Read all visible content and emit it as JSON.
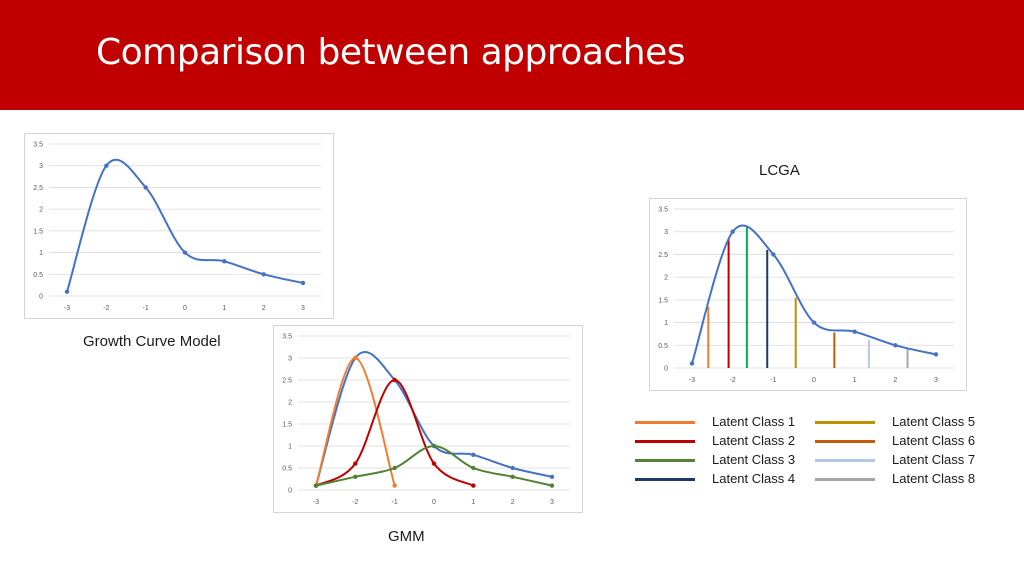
{
  "slide": {
    "title": "Comparison between approaches",
    "accent_color": "#c00000"
  },
  "captions": {
    "growth": "Growth Curve Model",
    "lcga": "LCGA",
    "gmm": "GMM"
  },
  "chart_data": [
    {
      "id": "growth",
      "type": "line",
      "x": [
        -3,
        -2,
        -1,
        0,
        1,
        2,
        3
      ],
      "x_tick_labels": [
        "-3",
        "-2",
        "-1",
        "0",
        "1",
        "2",
        "3"
      ],
      "y_ticks": [
        0,
        0.5,
        1,
        1.5,
        2,
        2.5,
        3,
        3.5
      ],
      "ylim": [
        0,
        3.5
      ],
      "grid": true,
      "series": [
        {
          "values": [
            0.1,
            3,
            2.5,
            1,
            0.8,
            0.5,
            0.3
          ],
          "color": "#4472c4"
        }
      ]
    },
    {
      "id": "lcga",
      "type": "line",
      "x": [
        -3,
        -2,
        -1,
        0,
        1,
        2,
        3
      ],
      "x_tick_labels": [
        "-3",
        "-2",
        "-1",
        "0",
        "1",
        "2",
        "3"
      ],
      "y_ticks": [
        0,
        0.5,
        1,
        1.5,
        2,
        2.5,
        3,
        3.5
      ],
      "ylim": [
        0,
        3.5
      ],
      "grid": true,
      "series": [
        {
          "values": [
            0.1,
            3,
            2.5,
            1,
            0.8,
            0.5,
            0.3
          ],
          "color": "#4472c4"
        }
      ],
      "class_bars": [
        {
          "x": -2.6,
          "y": 1.35,
          "color": "#ed7d31"
        },
        {
          "x": -2.1,
          "y": 2.85,
          "color": "#c00000"
        },
        {
          "x": -1.65,
          "y": 3.1,
          "color": "#00b050"
        },
        {
          "x": -1.15,
          "y": 2.6,
          "color": "#1f3864"
        },
        {
          "x": -0.45,
          "y": 1.55,
          "color": "#bf9000"
        },
        {
          "x": 0.5,
          "y": 0.78,
          "color": "#c55a11"
        },
        {
          "x": 1.35,
          "y": 0.62,
          "color": "#b4c7e7"
        },
        {
          "x": 2.3,
          "y": 0.42,
          "color": "#a6a6a6"
        }
      ]
    },
    {
      "id": "gmm",
      "type": "line",
      "x": [
        -3,
        -2,
        -1,
        0,
        1,
        2,
        3
      ],
      "x_tick_labels": [
        "-3",
        "-2",
        "-1",
        "0",
        "1",
        "2",
        "3"
      ],
      "y_ticks": [
        0,
        0.5,
        1,
        1.5,
        2,
        2.5,
        3,
        3.5
      ],
      "ylim": [
        0,
        3.5
      ],
      "grid": true,
      "series": [
        {
          "x": [
            -3,
            -2,
            -1,
            0,
            1,
            2,
            3
          ],
          "values": [
            0.1,
            3,
            2.5,
            1,
            0.8,
            0.5,
            0.3
          ],
          "color": "#4472c4"
        },
        {
          "x": [
            -3,
            -2,
            -1
          ],
          "values": [
            0.1,
            3,
            0.1
          ],
          "color": "#ed7d31"
        },
        {
          "x": [
            -3,
            -2,
            -1,
            0,
            1
          ],
          "values": [
            0.1,
            0.6,
            2.5,
            0.6,
            0.1
          ],
          "color": "#c00000"
        },
        {
          "x": [
            -3,
            -2,
            -1,
            0,
            1,
            2,
            3
          ],
          "values": [
            0.1,
            0.3,
            0.5,
            1,
            0.5,
            0.3,
            0.1
          ],
          "color": "#548235"
        }
      ]
    }
  ],
  "legend": {
    "items": [
      {
        "label": "Latent Class 1",
        "color": "#ed7d31"
      },
      {
        "label": "Latent Class 2",
        "color": "#c00000"
      },
      {
        "label": "Latent Class 3",
        "color": "#548235"
      },
      {
        "label": "Latent Class 4",
        "color": "#1f3864"
      },
      {
        "label": "Latent Class 5",
        "color": "#bf9000"
      },
      {
        "label": "Latent Class 6",
        "color": "#c55a11"
      },
      {
        "label": "Latent Class 7",
        "color": "#b4c7e7"
      },
      {
        "label": "Latent Class 8",
        "color": "#a6a6a6"
      }
    ]
  }
}
